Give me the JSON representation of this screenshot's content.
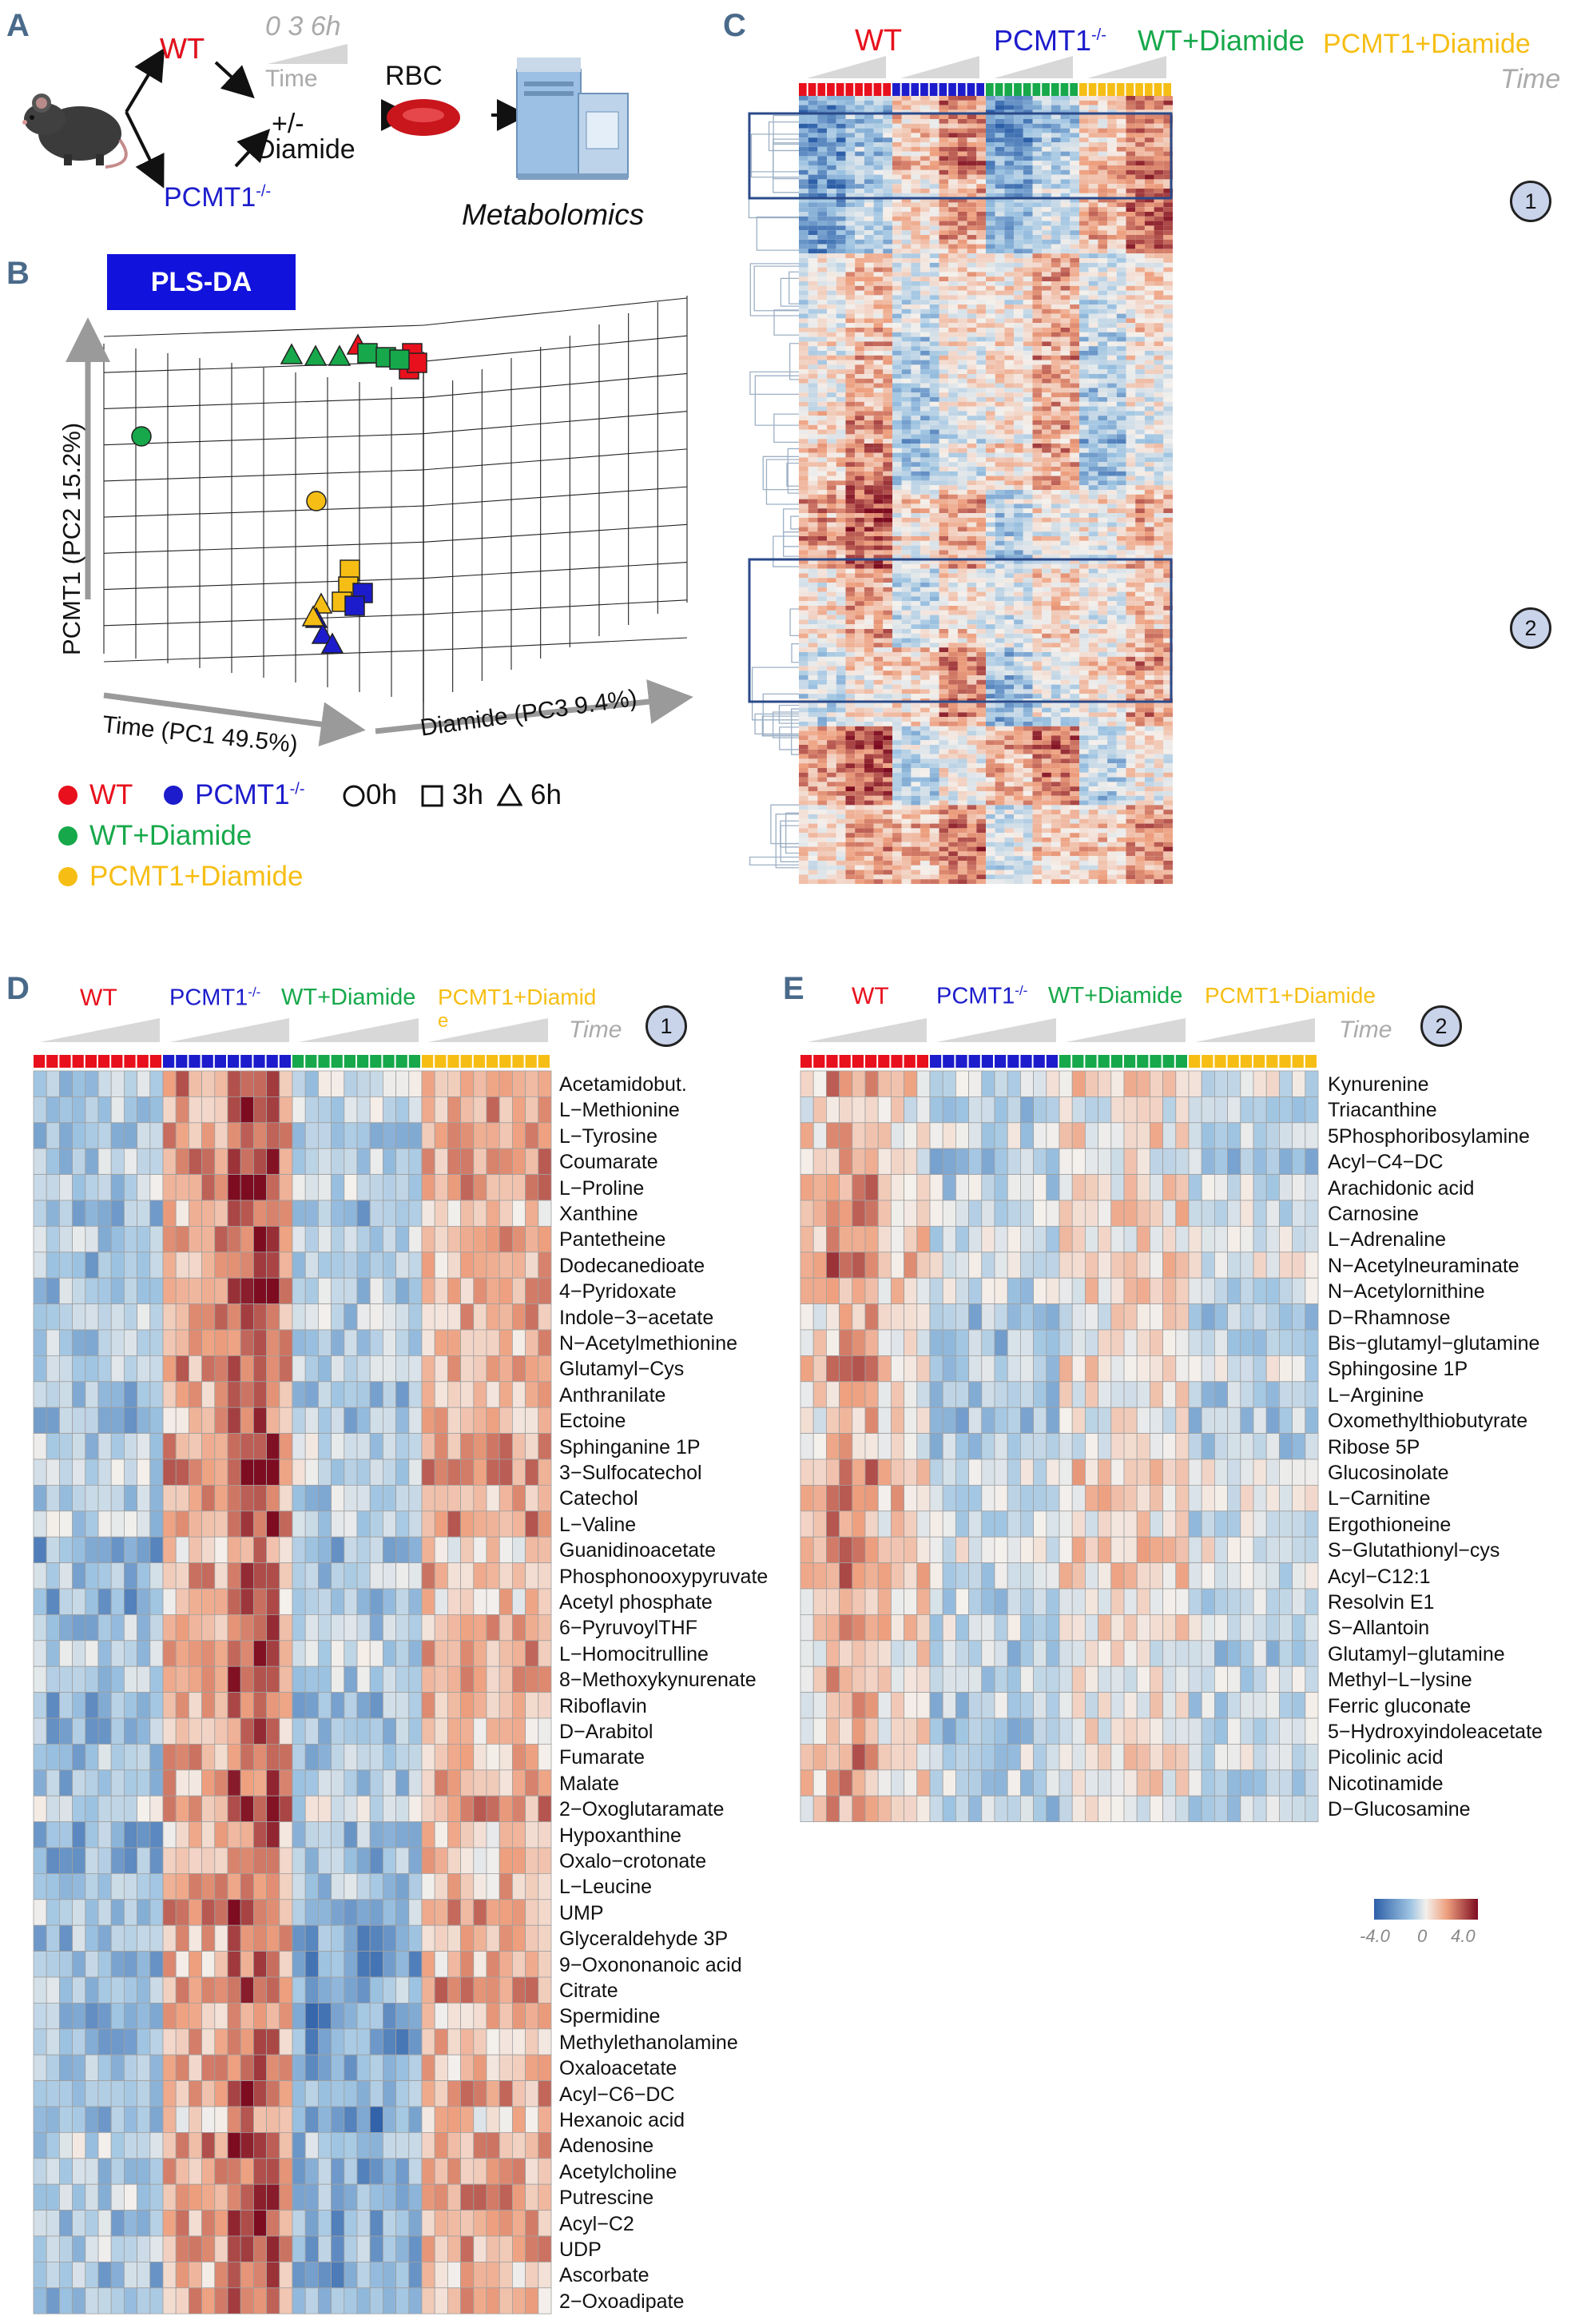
{
  "colors": {
    "wt": "#e8101c",
    "ko": "#1c1ccc",
    "wtd": "#16a84a",
    "kod": "#f6be14",
    "grey": "#aaaaaa",
    "box": "#2a4a8a"
  },
  "panels": {
    "a": "A",
    "b": "B",
    "c": "C",
    "d": "D",
    "e": "E"
  },
  "panelA": {
    "wt": "WT",
    "ko_main": "PCMT1",
    "ko_sup": "-/-",
    "time_nums": "0 3 6h",
    "time": "Time",
    "plusminus": "+/-",
    "diamide": "Diamide",
    "rbc": "RBC",
    "metabolomics": "Metabolomics",
    "mouse_icon": "mouse-icon",
    "rbc_icon": "red-blood-cell-icon",
    "instrument_icon": "mass-spectrometer-icon"
  },
  "panelB": {
    "badge": "PLS-DA",
    "yaxis": "PCMT1 (PC2 15.2%)",
    "xaxis": "Time (PC1 49.5%)",
    "zaxis": "Diamide (PC3 9.4%)",
    "legend": {
      "wt": "WT",
      "ko_main": "PCMT1",
      "ko_sup": "-/-",
      "t0": "0h",
      "t3": "3h",
      "t6": "6h",
      "wtd": "WT+Diamide",
      "kod": "PCMT1+Diamide"
    }
  },
  "panelC": {
    "groups": {
      "wt": "WT",
      "ko_main": "PCMT1",
      "ko_sup": "-/-",
      "wtd": "WT+Diamide",
      "kod": "PCMT1+Diamide"
    },
    "time": "Time",
    "cluster1": "1",
    "cluster2": "2"
  },
  "panelD": {
    "groups": {
      "wt": "WT",
      "ko_main": "PCMT1",
      "ko_sup": "-/-",
      "wtd": "WT+Diamide",
      "kod_a": "PCMT1+Diamid",
      "kod_b": "e"
    },
    "time": "Time",
    "cluster": "1",
    "rows": [
      "Acetamidobut.",
      "L−Methionine",
      "L−Tyrosine",
      "Coumarate",
      "L−Proline",
      "Xanthine",
      "Pantetheine",
      "Dodecanedioate",
      "4−Pyridoxate",
      "Indole−3−acetate",
      "N−Acetylmethionine",
      "Glutamyl−Cys",
      "Anthranilate",
      "Ectoine",
      "Sphinganine 1P",
      "3−Sulfocatechol",
      "Catechol",
      "L−Valine",
      "Guanidinoacetate",
      "Phosphonooxypyruvate",
      "Acetyl phosphate",
      "6−PyruvoylTHF",
      "L−Homocitrulline",
      "8−Methoxykynurenate",
      "Riboflavin",
      "D−Arabitol",
      "Fumarate",
      "Malate",
      "2−Oxoglutaramate",
      "Hypoxanthine",
      "Oxalo−crotonate",
      "L−Leucine",
      "UMP",
      "Glyceraldehyde 3P",
      "9−Oxononanoic acid",
      "Citrate",
      "Spermidine",
      "Methylethanolamine",
      "Oxaloacetate",
      "Acyl−C6−DC",
      "Hexanoic acid",
      "Adenosine",
      "Acetylcholine",
      "Putrescine",
      "Acyl−C2",
      "UDP",
      "Ascorbate",
      "2−Oxoadipate"
    ]
  },
  "panelE": {
    "groups": {
      "wt": "WT",
      "ko_main": "PCMT1",
      "ko_sup": "-/-",
      "wtd": "WT+Diamide",
      "kod": "PCMT1+Diamide"
    },
    "time": "Time",
    "cluster": "2",
    "rows": [
      "Kynurenine",
      "Triacanthine",
      "5Phosphoribosylamine",
      "Acyl−C4−DC",
      "Arachidonic acid",
      "Carnosine",
      "L−Adrenaline",
      "N−Acetylneuraminate",
      "N−Acetylornithine",
      "D−Rhamnose",
      "Bis−glutamyl−glutamine",
      "Sphingosine 1P",
      "L−Arginine",
      "Oxomethylthiobutyrate",
      "Ribose 5P",
      "Glucosinolate",
      "L−Carnitine",
      "Ergothioneine",
      "S−Glutathionyl−cys",
      "Acyl−C12:1",
      "Resolvin E1",
      "S−Allantoin",
      "Glutamyl−glutamine",
      "Methyl−L−lysine",
      "Ferric gluconate",
      "5−Hydroxyindoleacetate",
      "Picolinic acid",
      "Nicotinamide",
      "D−Glucosamine"
    ],
    "scale_min": "-4.0",
    "scale_mid": "0",
    "scale_max": "4.0"
  }
}
